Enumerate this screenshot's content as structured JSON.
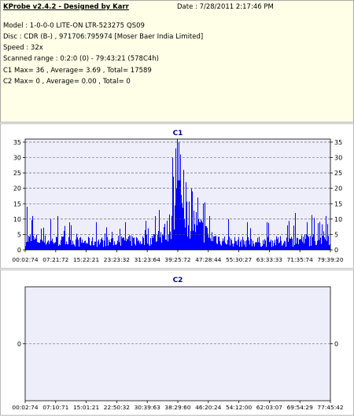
{
  "info": {
    "title": "KProbe v2.4.2 - Designed by Karr",
    "date": "Date : 7/28/2011 2:17:46 PM",
    "model": "Model : 1-0-0-0 LITE-ON LTR-523275",
    "model_code": "QS09",
    "disc": "Disc : CDR (B-) , 971706:795974 [Moser Baer India Limited]",
    "speed": "Speed : 32x",
    "scanned_range": "Scanned range : 0:2:0 (0) - 79:43:21 (578C4h)",
    "c1_stats": "C1 Max= 36 , Average= 3.69 , Total= 17589",
    "c2_stats": "C2 Max= 0 , Average= 0.00 , Total= 0"
  },
  "colors": {
    "bar": "#0000ff",
    "plot_bg": "#eeeefa",
    "grid": "#505050",
    "title": "#000080",
    "info_bg": "#ffffe8"
  },
  "chart_data": [
    {
      "type": "bar",
      "title": "C1",
      "ylim": [
        0,
        36
      ],
      "y_ticks": [
        0,
        5,
        10,
        15,
        20,
        25,
        30,
        35
      ],
      "x_tick_labels": [
        "00:02:74",
        "07:21:72",
        "15:22:21",
        "23:23:32",
        "31:23:64",
        "39:25:72",
        "47:28:44",
        "55:30:27",
        "63:33:33",
        "71:35:74",
        "79:39:20"
      ],
      "grid": "dashed horizontal",
      "max": 36,
      "average": 3.69,
      "total": 17589,
      "profile_minutes": [
        0,
        5,
        10,
        15,
        20,
        25,
        30,
        33,
        35,
        37,
        38,
        39,
        40,
        41,
        42,
        44,
        46,
        48,
        52,
        56,
        60,
        64,
        68,
        72,
        76,
        79.7
      ],
      "profile_level": [
        3.5,
        3,
        2.8,
        2.6,
        2.6,
        2.8,
        3,
        3.5,
        4.5,
        6,
        9,
        15,
        17,
        14,
        11,
        9,
        6.5,
        4.5,
        3,
        2.6,
        2.6,
        2.6,
        2.8,
        3.2,
        3.5,
        4
      ],
      "peaks": [
        {
          "minute": 0.5,
          "value": 14
        },
        {
          "minute": 1.8,
          "value": 11
        },
        {
          "minute": 6.5,
          "value": 10
        },
        {
          "minute": 8.5,
          "value": 11
        },
        {
          "minute": 12.0,
          "value": 8
        },
        {
          "minute": 18.5,
          "value": 9
        },
        {
          "minute": 26.0,
          "value": 9
        },
        {
          "minute": 32.0,
          "value": 7
        },
        {
          "minute": 38.5,
          "value": 30
        },
        {
          "minute": 39.2,
          "value": 33
        },
        {
          "minute": 39.6,
          "value": 36
        },
        {
          "minute": 40.0,
          "value": 35
        },
        {
          "minute": 40.4,
          "value": 31
        },
        {
          "minute": 41.2,
          "value": 26
        },
        {
          "minute": 42.0,
          "value": 22
        },
        {
          "minute": 43.5,
          "value": 19
        },
        {
          "minute": 45.0,
          "value": 17
        },
        {
          "minute": 46.5,
          "value": 15
        },
        {
          "minute": 48.0,
          "value": 11
        },
        {
          "minute": 53.0,
          "value": 10
        },
        {
          "minute": 58.0,
          "value": 9
        },
        {
          "minute": 63.0,
          "value": 9
        },
        {
          "minute": 70.5,
          "value": 12
        },
        {
          "minute": 73.5,
          "value": 9
        },
        {
          "minute": 78.5,
          "value": 11
        }
      ]
    },
    {
      "type": "bar",
      "title": "C2",
      "ylim": [
        -1,
        1
      ],
      "y_ticks": [
        0
      ],
      "x_tick_labels": [
        "00:02:74",
        "07:10:71",
        "15:01:21",
        "22:50:32",
        "30:39:63",
        "38:29:60",
        "46:20:24",
        "54:12:00",
        "62:03:07",
        "69:54:29",
        "77:45:42"
      ],
      "grid": "dashed horizontal",
      "max": 0,
      "average": 0.0,
      "total": 0,
      "values": []
    }
  ]
}
